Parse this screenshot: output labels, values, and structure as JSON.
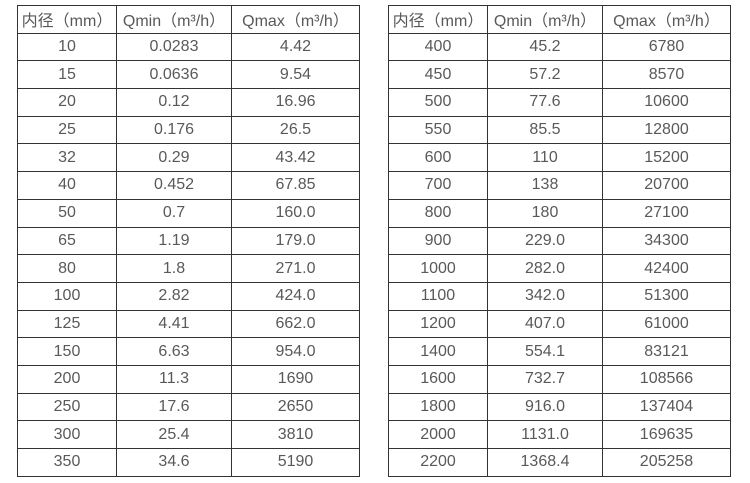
{
  "page": {
    "background_color": "#ffffff",
    "border_color": "#333333",
    "text_color": "#595959"
  },
  "tables": [
    {
      "name": "flow-spec-table-small-diameters",
      "headers": [
        "内径（mm）",
        "Qmin（m³/h）",
        "Qmax（m³/h）"
      ],
      "rows": [
        [
          "10",
          "0.0283",
          "4.42"
        ],
        [
          "15",
          "0.0636",
          "9.54"
        ],
        [
          "20",
          "0.12",
          "16.96"
        ],
        [
          "25",
          "0.176",
          "26.5"
        ],
        [
          "32",
          "0.29",
          "43.42"
        ],
        [
          "40",
          "0.452",
          "67.85"
        ],
        [
          "50",
          "0.7",
          "160.0"
        ],
        [
          "65",
          "1.19",
          "179.0"
        ],
        [
          "80",
          "1.8",
          "271.0"
        ],
        [
          "100",
          "2.82",
          "424.0"
        ],
        [
          "125",
          "4.41",
          "662.0"
        ],
        [
          "150",
          "6.63",
          "954.0"
        ],
        [
          "200",
          "11.3",
          "1690"
        ],
        [
          "250",
          "17.6",
          "2650"
        ],
        [
          "300",
          "25.4",
          "3810"
        ],
        [
          "350",
          "34.6",
          "5190"
        ]
      ]
    },
    {
      "name": "flow-spec-table-large-diameters",
      "headers": [
        "内径（mm）",
        "Qmin（m³/h）",
        "Qmax（m³/h）"
      ],
      "rows": [
        [
          "400",
          "45.2",
          "6780"
        ],
        [
          "450",
          "57.2",
          "8570"
        ],
        [
          "500",
          "77.6",
          "10600"
        ],
        [
          "550",
          "85.5",
          "12800"
        ],
        [
          "600",
          "110",
          "15200"
        ],
        [
          "700",
          "138",
          "20700"
        ],
        [
          "800",
          "180",
          "27100"
        ],
        [
          "900",
          "229.0",
          "34300"
        ],
        [
          "1000",
          "282.0",
          "42400"
        ],
        [
          "1100",
          "342.0",
          "51300"
        ],
        [
          "1200",
          "407.0",
          "61000"
        ],
        [
          "1400",
          "554.1",
          "83121"
        ],
        [
          "1600",
          "732.7",
          "108566"
        ],
        [
          "1800",
          "916.0",
          "137404"
        ],
        [
          "2000",
          "1131.0",
          "169635"
        ],
        [
          "2200",
          "1368.4",
          "205258"
        ]
      ]
    }
  ]
}
